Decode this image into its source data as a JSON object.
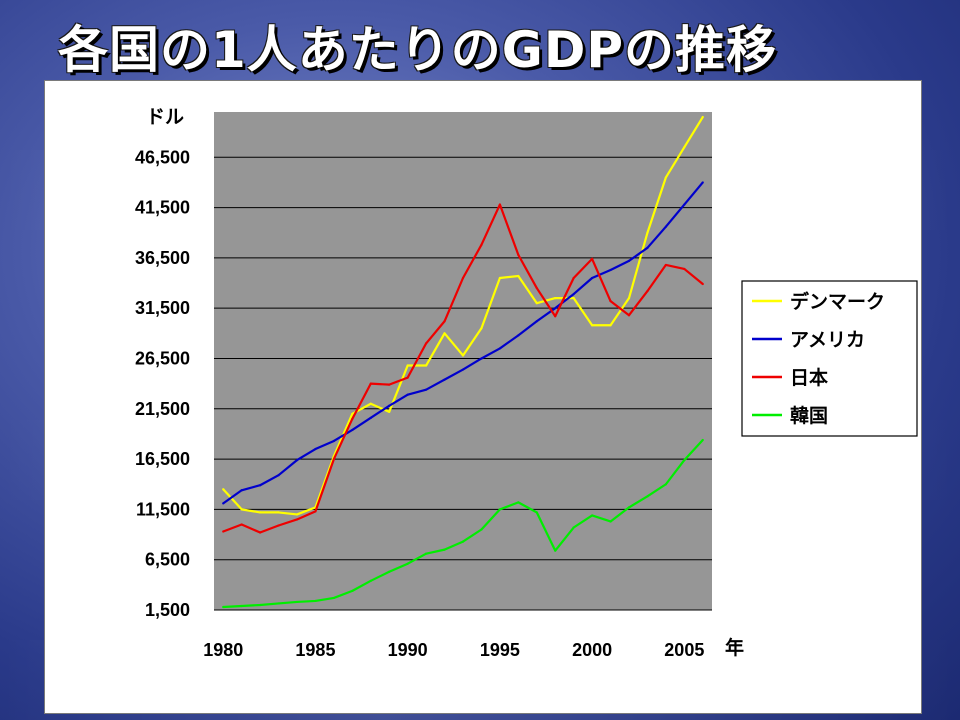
{
  "title": "各国の1人あたりのGDPの推移",
  "chart_data": {
    "type": "line",
    "title": "",
    "xlabel": "年",
    "ylabel": "ドル",
    "x": [
      1980,
      1981,
      1982,
      1983,
      1984,
      1985,
      1986,
      1987,
      1988,
      1989,
      1990,
      1991,
      1992,
      1993,
      1994,
      1995,
      1996,
      1997,
      1998,
      1999,
      2000,
      2001,
      2002,
      2003,
      2004,
      2005,
      2006
    ],
    "xticks": [
      1980,
      1985,
      1990,
      1995,
      2000,
      2005
    ],
    "xtick_labels": [
      "1980",
      "1985",
      "1990",
      "1995",
      "2000",
      "2005"
    ],
    "yticks": [
      1500,
      6500,
      11500,
      16500,
      21500,
      26500,
      31500,
      36500,
      41500,
      46500
    ],
    "ytick_labels": [
      "1,500",
      "6,500",
      "11,500",
      "16,500",
      "21,500",
      "26,500",
      "31,500",
      "36,500",
      "41,500",
      "46,500"
    ],
    "ylim": [
      1500,
      51000
    ],
    "xlim": [
      1979.5,
      2006.5
    ],
    "grid": true,
    "plot_background": "#969696",
    "legend_position": "right",
    "series": [
      {
        "name": "デンマーク",
        "color": "#ffff00",
        "values": [
          13500,
          11500,
          11200,
          11200,
          11000,
          11700,
          16800,
          21000,
          22000,
          21200,
          25800,
          25800,
          29000,
          26800,
          29500,
          34500,
          34700,
          32000,
          32500,
          32500,
          29800,
          29800,
          32500,
          39000,
          44500,
          47500,
          50500
        ]
      },
      {
        "name": "アメリカ",
        "color": "#0000cc",
        "values": [
          12100,
          13400,
          13900,
          14900,
          16400,
          17500,
          18300,
          19400,
          20600,
          21800,
          22900,
          23400,
          24400,
          25400,
          26500,
          27500,
          28800,
          30200,
          31500,
          32900,
          34500,
          35300,
          36200,
          37500,
          39600,
          41800,
          44000
        ]
      },
      {
        "name": "日本",
        "color": "#ee0000",
        "values": [
          9300,
          10000,
          9200,
          9900,
          10500,
          11300,
          16500,
          20500,
          24000,
          23900,
          24600,
          28000,
          30200,
          34500,
          37800,
          41800,
          36800,
          33500,
          30700,
          34500,
          36400,
          32200,
          30800,
          33200,
          35800,
          35400,
          33900
        ]
      },
      {
        "name": "韓国",
        "color": "#00ee00",
        "values": [
          1800,
          1900,
          2000,
          2150,
          2300,
          2400,
          2700,
          3400,
          4400,
          5300,
          6100,
          7100,
          7500,
          8300,
          9500,
          11500,
          12200,
          11200,
          7400,
          9700,
          10900,
          10300,
          11700,
          12800,
          14000,
          16400,
          18400
        ]
      }
    ]
  }
}
